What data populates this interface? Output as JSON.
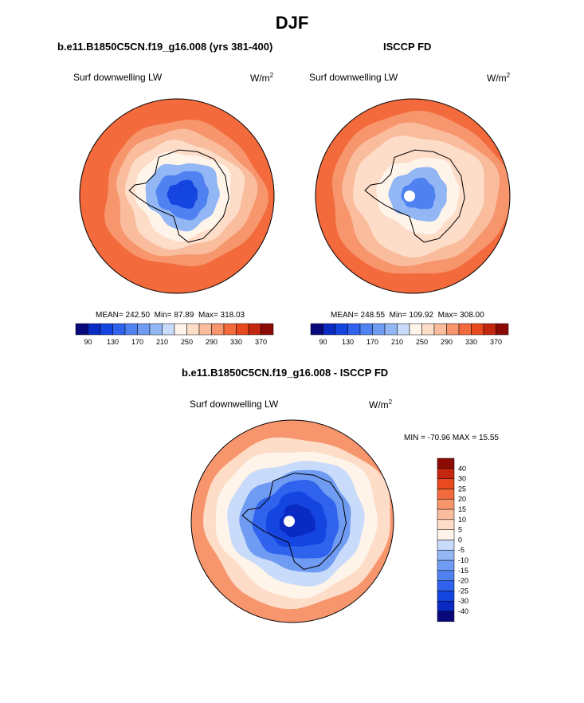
{
  "page_title": "DJF",
  "panels": [
    {
      "title": "b.e11.B1850C5CN.f19_g16.008 (yrs 381-400)",
      "variable": "Surf downwelling LW",
      "units_base": "W/m",
      "units_exp": "2",
      "stats": {
        "mean_label": "MEAN=",
        "mean": "242.50",
        "min_label": "Min=",
        "min": "87.89",
        "max_label": "Max=",
        "max": "318.03"
      }
    },
    {
      "title": "ISCCP FD",
      "variable": "Surf downwelling LW",
      "units_base": "W/m",
      "units_exp": "2",
      "stats": {
        "mean_label": "MEAN=",
        "mean": "248.55",
        "min_label": "Min=",
        "min": "109.92",
        "max_label": "Max=",
        "max": "308.00"
      }
    },
    {
      "title": "b.e11.B1850C5CN.f19_g16.008 - ISCCP FD",
      "variable": "Surf downwelling LW",
      "units_base": "W/m",
      "units_exp": "2",
      "stats": {
        "min_label": "MIN =",
        "min": "-70.96",
        "max_label": "MAX =",
        "max": "15.55"
      }
    }
  ],
  "chart_data": [
    {
      "type": "heatmap",
      "title": "b.e11.B1850C5CN.f19_g16.008 (yrs 381-400)",
      "subtitle": "Surf downwelling LW",
      "projection": "south-polar-stereographic",
      "units": "W/m^2",
      "colorbar": {
        "orientation": "horizontal",
        "levels": [
          90,
          110,
          130,
          150,
          170,
          190,
          210,
          230,
          250,
          270,
          290,
          310,
          330,
          350,
          370
        ],
        "tick_labels": [
          "90",
          "130",
          "170",
          "210",
          "250",
          "290",
          "330",
          "370"
        ],
        "colors": [
          "#08087a",
          "#0a2ac4",
          "#1545e0",
          "#2f63ee",
          "#4f82f0",
          "#6f9cf2",
          "#93b7f5",
          "#c8dbfa",
          "#fff4ea",
          "#fddcc8",
          "#f9bc9c",
          "#f7956c",
          "#f36a3c",
          "#e8491e",
          "#c4270f",
          "#8c0a04"
        ]
      },
      "mean": 242.5,
      "min": 87.89,
      "max": 318.03,
      "rings": [
        {
          "level": 310
        },
        {
          "level": 290
        },
        {
          "level": 270
        },
        {
          "level": 250
        },
        {
          "level": 230
        },
        {
          "level": 190
        },
        {
          "level": 150
        },
        {
          "level": 110
        }
      ],
      "pole_marker": false
    },
    {
      "type": "heatmap",
      "title": "ISCCP FD",
      "subtitle": "Surf downwelling LW",
      "projection": "south-polar-stereographic",
      "units": "W/m^2",
      "colorbar": {
        "orientation": "horizontal",
        "levels": [
          90,
          110,
          130,
          150,
          170,
          190,
          210,
          230,
          250,
          270,
          290,
          310,
          330,
          350,
          370
        ],
        "tick_labels": [
          "90",
          "130",
          "170",
          "210",
          "250",
          "290",
          "330",
          "370"
        ],
        "colors": [
          "#08087a",
          "#0a2ac4",
          "#1545e0",
          "#2f63ee",
          "#4f82f0",
          "#6f9cf2",
          "#93b7f5",
          "#c8dbfa",
          "#fff4ea",
          "#fddcc8",
          "#f9bc9c",
          "#f7956c",
          "#f36a3c",
          "#e8491e",
          "#c4270f",
          "#8c0a04"
        ]
      },
      "mean": 248.55,
      "min": 109.92,
      "max": 308.0,
      "rings": [
        {
          "level": 300
        },
        {
          "level": 280
        },
        {
          "level": 260
        },
        {
          "level": 250
        },
        {
          "level": 230
        },
        {
          "level": 190
        },
        {
          "level": 150
        }
      ],
      "pole_marker": true
    },
    {
      "type": "heatmap",
      "title": "b.e11.B1850C5CN.f19_g16.008 - ISCCP FD",
      "subtitle": "Surf downwelling LW",
      "projection": "south-polar-stereographic",
      "units": "W/m^2",
      "colorbar": {
        "orientation": "vertical",
        "levels": [
          -40,
          -30,
          -25,
          -20,
          -15,
          -10,
          -5,
          0,
          5,
          10,
          15,
          20,
          25,
          30,
          40
        ],
        "tick_labels": [
          "-40",
          "-30",
          "-25",
          "-20",
          "-15",
          "-10",
          "-5",
          "0",
          "5",
          "10",
          "15",
          "20",
          "25",
          "30",
          "40"
        ],
        "colors": [
          "#08087a",
          "#0a2ac4",
          "#1545e0",
          "#2f63ee",
          "#4f82f0",
          "#6f9cf2",
          "#93b7f5",
          "#c8dbfa",
          "#fff4ea",
          "#fddcc8",
          "#f9bc9c",
          "#f7956c",
          "#f36a3c",
          "#e8491e",
          "#c4270f",
          "#8c0a04"
        ]
      },
      "min": -70.96,
      "max": 15.55,
      "rings": [
        {
          "level": 7
        },
        {
          "level": 3
        },
        {
          "level": -2
        },
        {
          "level": -12
        },
        {
          "level": -22
        },
        {
          "level": -28
        },
        {
          "level": -35
        }
      ],
      "pole_marker": true
    }
  ]
}
